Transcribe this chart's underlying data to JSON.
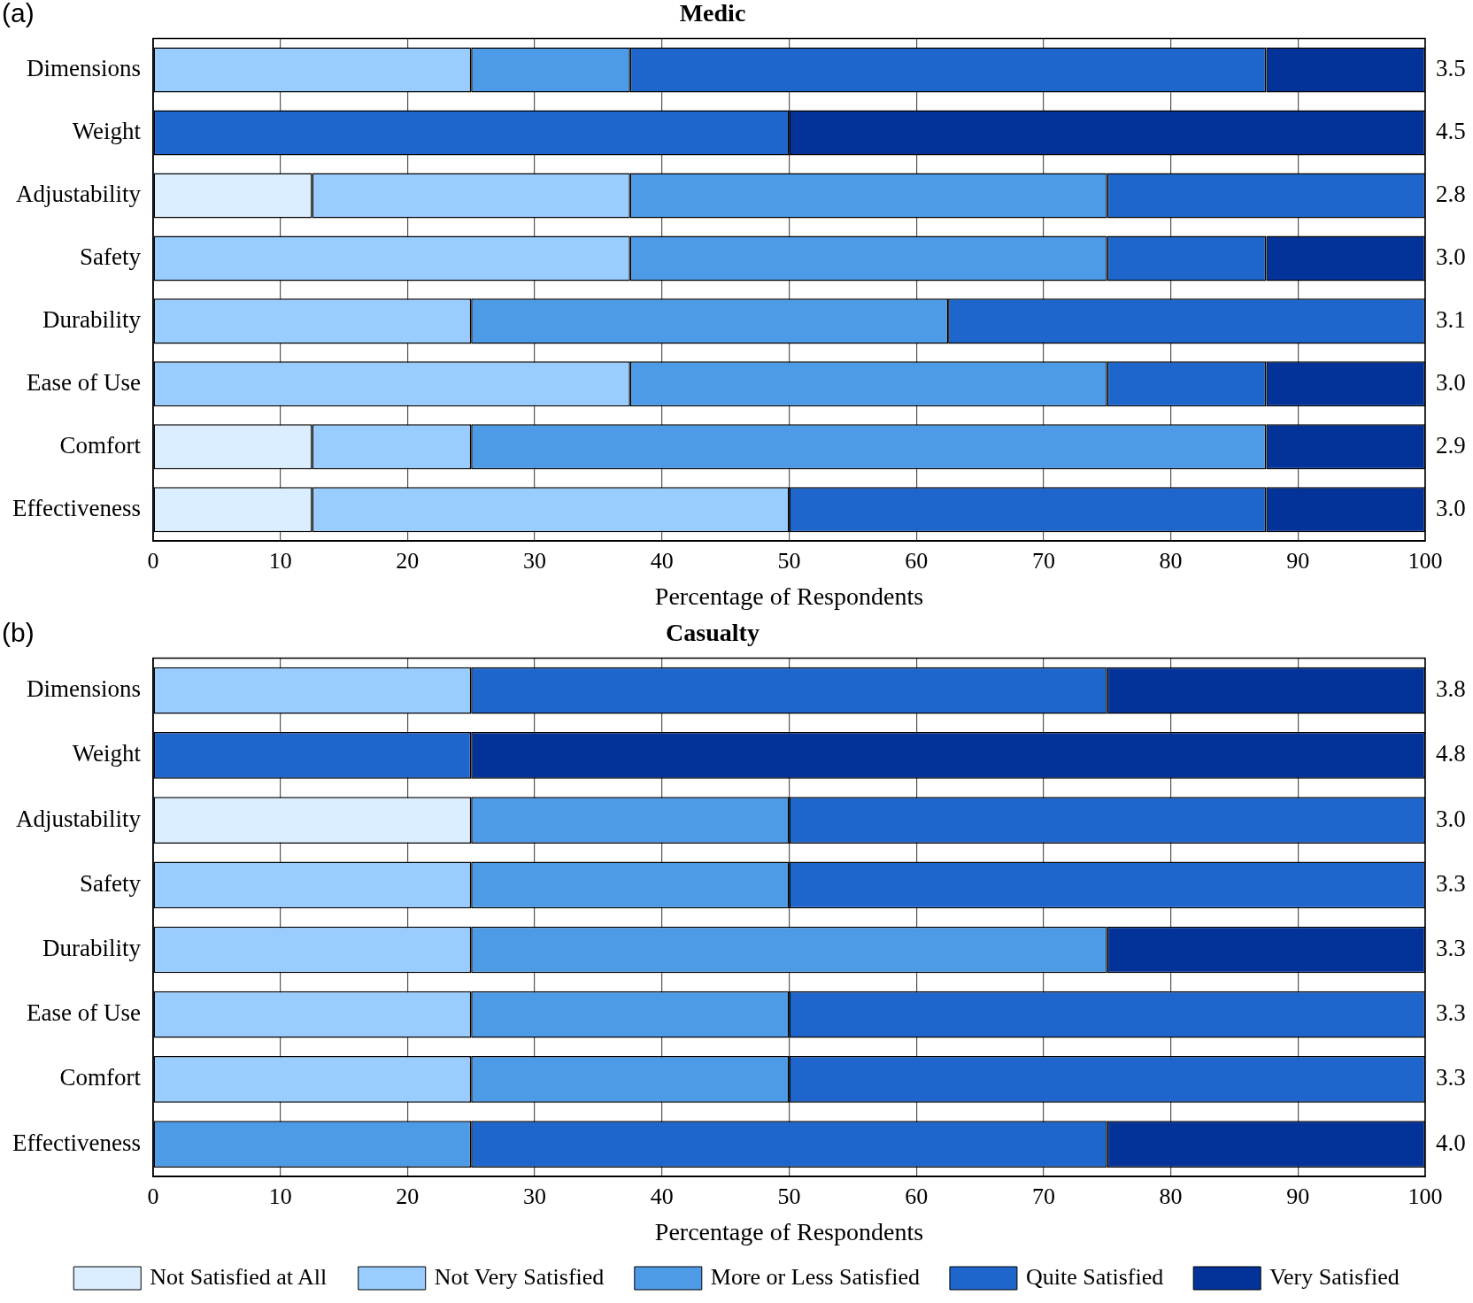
{
  "chart_data": [
    {
      "type": "bar",
      "orientation": "horizontal",
      "stacked": true,
      "title": "Medic",
      "xlabel": "Percentage of Respondents",
      "categories": [
        "Dimensions",
        "Weight",
        "Adjustability",
        "Safety",
        "Durability",
        "Ease of Use",
        "Comfort",
        "Effectiveness"
      ],
      "xlim": [
        0,
        100
      ],
      "xticks": [
        0,
        10,
        20,
        30,
        40,
        50,
        60,
        70,
        80,
        90,
        100
      ],
      "grid": "x",
      "series": [
        {
          "color": "#dbeeff",
          "values": [
            null,
            null,
            12.5,
            null,
            null,
            null,
            12.5,
            12.5
          ]
        },
        {
          "color": "#99ccff",
          "values": [
            25,
            null,
            25,
            37.5,
            25,
            37.5,
            12.5,
            37.5
          ]
        },
        {
          "color": "#4d9ae6",
          "values": [
            12.5,
            null,
            37.5,
            37.5,
            37.5,
            37.5,
            62.5,
            null
          ]
        },
        {
          "color": "#1f66cc",
          "values": [
            50,
            50,
            25,
            12.5,
            37.5,
            12.5,
            null,
            37.5
          ]
        },
        {
          "color": "#033399",
          "values": [
            12.5,
            50,
            null,
            12.5,
            null,
            12.5,
            12.5,
            12.5
          ]
        }
      ],
      "annotations": [
        "(a)",
        "3.5",
        "4.5",
        "2.8",
        "3.0",
        "3.1",
        "3.0",
        "2.9",
        "3.0"
      ]
    },
    {
      "type": "bar",
      "orientation": "horizontal",
      "stacked": true,
      "title": "Casualty",
      "xlabel": "Percentage of Respondents",
      "categories": [
        "Dimensions",
        "Weight",
        "Adjustability",
        "Safety",
        "Durability",
        "Ease of Use",
        "Comfort",
        "Effectiveness"
      ],
      "xlim": [
        0,
        100
      ],
      "xticks": [
        0,
        10,
        20,
        30,
        40,
        50,
        60,
        70,
        80,
        90,
        100
      ],
      "grid": "x",
      "legend": "bottom",
      "series": [
        {
          "name": "Not Satisfied at All",
          "color": "#dbeeff",
          "values": [
            null,
            null,
            25,
            null,
            null,
            null,
            null,
            null
          ]
        },
        {
          "name": "Not Very Satisfied",
          "color": "#99ccff",
          "values": [
            25,
            null,
            null,
            25,
            25,
            25,
            25,
            null
          ]
        },
        {
          "name": "More or Less Satisfied",
          "color": "#4d9ae6",
          "values": [
            null,
            null,
            25,
            25,
            50,
            25,
            25,
            25
          ]
        },
        {
          "name": "Quite Satisfied",
          "color": "#1f66cc",
          "values": [
            50,
            25,
            50,
            50,
            null,
            50,
            50,
            50
          ]
        },
        {
          "name": "Very Satisfied",
          "color": "#033399",
          "values": [
            25,
            75,
            null,
            null,
            25,
            null,
            null,
            25
          ]
        }
      ],
      "annotations": [
        "(b)",
        "3.8",
        "4.8",
        "3.0",
        "3.3",
        "3.3",
        "3.3",
        "3.3",
        "4.0"
      ]
    }
  ]
}
